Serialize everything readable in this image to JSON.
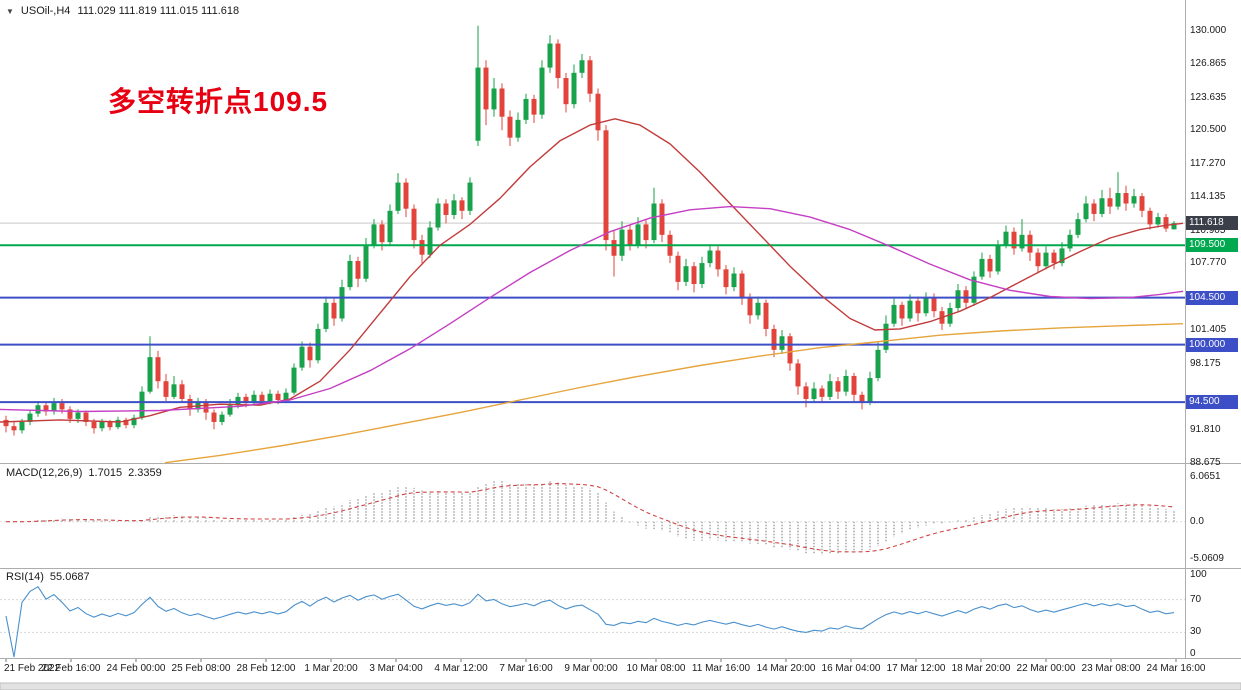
{
  "title": {
    "symbol_period": "USOil-,H4",
    "ohlc": "111.029 111.819 111.015 111.618"
  },
  "icons": {
    "triangle_down": "▼"
  },
  "annotation": {
    "text": "多空转折点109.5",
    "color": "#E60012"
  },
  "price_axis": {
    "labels": [
      "130.000",
      "126.865",
      "123.635",
      "120.500",
      "117.270",
      "114.135",
      "110.905",
      "107.770",
      "101.405",
      "98.175",
      "91.810",
      "88.675"
    ],
    "current_price_tag": "111.618"
  },
  "macd_panel": {
    "name": "MACD(12,26,9)",
    "main_value": "1.7015",
    "signal_value": "2.3359",
    "axis_labels": [
      "6.0651",
      "0.0",
      "-5.0609"
    ]
  },
  "rsi_panel": {
    "name": "RSI(14)",
    "value": "55.0687",
    "axis_labels": [
      "100",
      "70",
      "30",
      "0"
    ]
  },
  "time_axis": {
    "labels": [
      "21 Feb 2022",
      "22 Feb 16:00",
      "24 Feb 00:00",
      "25 Feb 08:00",
      "28 Feb 12:00",
      "1 Mar 20:00",
      "3 Mar 04:00",
      "4 Mar 12:00",
      "7 Mar 16:00",
      "9 Mar 00:00",
      "10 Mar 08:00",
      "11 Mar 16:00",
      "14 Mar 20:00",
      "16 Mar 04:00",
      "17 Mar 12:00",
      "18 Mar 20:00",
      "22 Mar 00:00",
      "23 Mar 08:00",
      "24 Mar 16:00"
    ]
  },
  "chart_data": {
    "type": "candlestick",
    "symbol": "USOil",
    "timeframe": "H4",
    "price_range": [
      88.675,
      130.0
    ],
    "colors": {
      "up": "#17A24B",
      "down": "#E2443C",
      "ma_fast": "#C23B3B",
      "ma_mid": "#C43FC4",
      "ma_slow": "#E6A43C",
      "macd_hist": "#ABABAB",
      "macd_signal": "#D04545",
      "rsi_line": "#4A90CC",
      "hline_blue": "#3D4FC6",
      "hline_green": "#00A84F",
      "price_tag_bg": "#3A3F4A",
      "bid_line": "#C9C9C9"
    },
    "horizontal_lines": [
      {
        "value": 109.5,
        "label": "109.500",
        "color": "#00A84F"
      },
      {
        "value": 104.5,
        "label": "104.500",
        "color": "#3D4FC6"
      },
      {
        "value": 100.0,
        "label": "100.000",
        "color": "#3D4FC6"
      },
      {
        "value": 94.5,
        "label": "94.500",
        "color": "#3D4FC6"
      }
    ],
    "moving_averages": [
      {
        "name": "ma-fast-red",
        "color": "#C23B3B",
        "points": [
          [
            0,
            92.6
          ],
          [
            60,
            92.8
          ],
          [
            120,
            92.6
          ],
          [
            150,
            93.2
          ],
          [
            180,
            94.0
          ],
          [
            220,
            94.3
          ],
          [
            260,
            94.2
          ],
          [
            290,
            94.8
          ],
          [
            320,
            96.5
          ],
          [
            350,
            99.5
          ],
          [
            380,
            103.0
          ],
          [
            410,
            106.5
          ],
          [
            440,
            109.5
          ],
          [
            470,
            111.5
          ],
          [
            500,
            114.0
          ],
          [
            530,
            117.0
          ],
          [
            560,
            119.5
          ],
          [
            590,
            121.0
          ],
          [
            615,
            121.6
          ],
          [
            640,
            121.0
          ],
          [
            670,
            119.2
          ],
          [
            700,
            116.5
          ],
          [
            730,
            113.5
          ],
          [
            760,
            110.5
          ],
          [
            790,
            107.5
          ],
          [
            820,
            104.8
          ],
          [
            850,
            102.5
          ],
          [
            875,
            101.4
          ],
          [
            900,
            101.5
          ],
          [
            930,
            102.2
          ],
          [
            960,
            103.2
          ],
          [
            990,
            104.5
          ],
          [
            1020,
            106.0
          ],
          [
            1050,
            107.5
          ],
          [
            1080,
            108.9
          ],
          [
            1110,
            110.2
          ],
          [
            1140,
            111.0
          ],
          [
            1165,
            111.4
          ],
          [
            1183,
            111.6
          ]
        ]
      },
      {
        "name": "ma-mid-magenta",
        "color": "#C43FC4",
        "points": [
          [
            0,
            93.8
          ],
          [
            80,
            93.6
          ],
          [
            160,
            93.7
          ],
          [
            240,
            94.1
          ],
          [
            290,
            94.7
          ],
          [
            330,
            95.8
          ],
          [
            370,
            97.5
          ],
          [
            410,
            99.6
          ],
          [
            450,
            102.0
          ],
          [
            490,
            104.5
          ],
          [
            530,
            106.9
          ],
          [
            570,
            109.0
          ],
          [
            610,
            110.8
          ],
          [
            650,
            112.1
          ],
          [
            690,
            112.9
          ],
          [
            730,
            113.2
          ],
          [
            770,
            113.0
          ],
          [
            810,
            112.2
          ],
          [
            850,
            111.0
          ],
          [
            890,
            109.4
          ],
          [
            930,
            107.7
          ],
          [
            970,
            106.2
          ],
          [
            1010,
            105.2
          ],
          [
            1050,
            104.6
          ],
          [
            1090,
            104.4
          ],
          [
            1130,
            104.5
          ],
          [
            1160,
            104.8
          ],
          [
            1183,
            105.1
          ]
        ]
      },
      {
        "name": "ma-slow-orange",
        "color": "#E6A43C",
        "points": [
          [
            165,
            88.7
          ],
          [
            220,
            89.4
          ],
          [
            280,
            90.3
          ],
          [
            340,
            91.3
          ],
          [
            400,
            92.4
          ],
          [
            460,
            93.5
          ],
          [
            520,
            94.7
          ],
          [
            580,
            95.9
          ],
          [
            640,
            97.0
          ],
          [
            700,
            98.0
          ],
          [
            760,
            98.9
          ],
          [
            820,
            99.7
          ],
          [
            880,
            100.3
          ],
          [
            940,
            100.9
          ],
          [
            1000,
            101.3
          ],
          [
            1060,
            101.6
          ],
          [
            1120,
            101.8
          ],
          [
            1183,
            102.0
          ]
        ]
      }
    ],
    "indicators": {
      "macd": {
        "fast": 12,
        "slow": 26,
        "signal": 9,
        "main": 1.7015,
        "signal_value": 2.3359,
        "axis_range": [
          -5.0609,
          6.0651
        ]
      },
      "rsi": {
        "period": 14,
        "value": 55.0687,
        "axis_range": [
          0,
          100
        ],
        "levels": [
          30,
          70
        ]
      }
    },
    "candles": [
      [
        92.8,
        93.2,
        91.6,
        92.2
      ],
      [
        92.2,
        92.6,
        91.3,
        91.8
      ],
      [
        91.8,
        92.9,
        91.5,
        92.6
      ],
      [
        92.6,
        93.8,
        92.3,
        93.4
      ],
      [
        93.4,
        94.6,
        93.1,
        94.2
      ],
      [
        94.2,
        94.5,
        93.2,
        93.6
      ],
      [
        93.6,
        94.9,
        93.3,
        94.4
      ],
      [
        94.4,
        94.8,
        93.4,
        93.8
      ],
      [
        93.8,
        94.1,
        92.5,
        92.9
      ],
      [
        92.9,
        93.8,
        92.5,
        93.5
      ],
      [
        93.5,
        93.7,
        92.2,
        92.6
      ],
      [
        92.6,
        92.9,
        91.5,
        92.0
      ],
      [
        92.0,
        92.9,
        91.7,
        92.6
      ],
      [
        92.6,
        92.8,
        91.8,
        92.1
      ],
      [
        92.1,
        93.1,
        91.9,
        92.8
      ],
      [
        92.8,
        93.0,
        92.0,
        92.3
      ],
      [
        92.3,
        93.3,
        92.0,
        93.0
      ],
      [
        93.0,
        96.0,
        92.8,
        95.5
      ],
      [
        95.5,
        100.8,
        95.3,
        98.8
      ],
      [
        98.8,
        99.4,
        95.8,
        96.5
      ],
      [
        96.5,
        97.2,
        94.6,
        95.0
      ],
      [
        95.0,
        97.0,
        94.8,
        96.2
      ],
      [
        96.2,
        96.6,
        94.5,
        94.8
      ],
      [
        94.8,
        95.2,
        93.2,
        93.8
      ],
      [
        93.8,
        94.9,
        93.5,
        94.5
      ],
      [
        94.5,
        94.8,
        92.8,
        93.5
      ],
      [
        93.5,
        93.8,
        91.9,
        92.6
      ],
      [
        92.6,
        93.6,
        92.3,
        93.3
      ],
      [
        93.3,
        94.8,
        93.1,
        94.2
      ],
      [
        94.2,
        95.4,
        93.9,
        95.0
      ],
      [
        95.0,
        95.3,
        94.0,
        94.4
      ],
      [
        94.4,
        95.6,
        94.2,
        95.2
      ],
      [
        95.2,
        95.5,
        94.2,
        94.6
      ],
      [
        94.6,
        95.7,
        94.3,
        95.3
      ],
      [
        95.3,
        95.6,
        94.3,
        94.7
      ],
      [
        94.7,
        95.8,
        94.4,
        95.4
      ],
      [
        95.4,
        98.2,
        95.2,
        97.8
      ],
      [
        97.8,
        100.3,
        97.5,
        99.8
      ],
      [
        99.8,
        100.2,
        97.8,
        98.5
      ],
      [
        98.5,
        102.0,
        98.2,
        101.5
      ],
      [
        101.5,
        104.6,
        101.2,
        104.0
      ],
      [
        104.0,
        104.4,
        101.8,
        102.5
      ],
      [
        102.5,
        106.2,
        102.2,
        105.5
      ],
      [
        105.5,
        108.6,
        105.2,
        108.0
      ],
      [
        108.0,
        108.4,
        105.5,
        106.3
      ],
      [
        106.3,
        110.2,
        106.0,
        109.5
      ],
      [
        109.5,
        112.0,
        109.2,
        111.5
      ],
      [
        111.5,
        111.9,
        109.0,
        109.8
      ],
      [
        109.8,
        113.4,
        109.5,
        112.8
      ],
      [
        112.8,
        116.4,
        112.5,
        115.5
      ],
      [
        115.5,
        115.9,
        112.2,
        113.0
      ],
      [
        113.0,
        113.4,
        109.2,
        110.0
      ],
      [
        110.0,
        110.5,
        107.8,
        108.6
      ],
      [
        108.6,
        111.8,
        108.3,
        111.2
      ],
      [
        111.2,
        114.0,
        110.9,
        113.5
      ],
      [
        113.5,
        113.9,
        111.6,
        112.4
      ],
      [
        112.4,
        114.4,
        112.0,
        113.8
      ],
      [
        113.8,
        114.1,
        112.0,
        112.8
      ],
      [
        112.8,
        116.0,
        112.4,
        115.5
      ],
      [
        119.5,
        130.5,
        119.0,
        126.5
      ],
      [
        126.5,
        127.2,
        121.0,
        122.5
      ],
      [
        122.5,
        125.5,
        121.8,
        124.5
      ],
      [
        124.5,
        125.0,
        120.5,
        121.8
      ],
      [
        121.8,
        122.4,
        119.0,
        119.8
      ],
      [
        119.8,
        122.2,
        119.4,
        121.5
      ],
      [
        121.5,
        124.0,
        121.1,
        123.5
      ],
      [
        123.5,
        123.9,
        121.2,
        122.0
      ],
      [
        122.0,
        127.2,
        121.6,
        126.5
      ],
      [
        126.5,
        129.6,
        126.0,
        128.8
      ],
      [
        128.8,
        129.2,
        124.5,
        125.5
      ],
      [
        125.5,
        126.0,
        122.2,
        123.0
      ],
      [
        123.0,
        126.8,
        122.6,
        126.0
      ],
      [
        126.0,
        127.8,
        125.5,
        127.2
      ],
      [
        127.2,
        127.6,
        123.2,
        124.0
      ],
      [
        124.0,
        124.5,
        119.5,
        120.5
      ],
      [
        120.5,
        121.0,
        109.0,
        110.0
      ],
      [
        110.0,
        111.0,
        106.5,
        108.5
      ],
      [
        108.5,
        111.8,
        108.0,
        111.0
      ],
      [
        111.0,
        111.4,
        109.0,
        109.5
      ],
      [
        109.5,
        112.2,
        109.2,
        111.5
      ],
      [
        111.5,
        111.9,
        109.2,
        110.0
      ],
      [
        110.0,
        115.0,
        109.7,
        113.5
      ],
      [
        113.5,
        113.9,
        109.8,
        110.5
      ],
      [
        110.5,
        110.9,
        107.8,
        108.5
      ],
      [
        108.5,
        108.9,
        105.2,
        106.0
      ],
      [
        106.0,
        108.2,
        105.6,
        107.5
      ],
      [
        107.5,
        107.9,
        105.0,
        105.8
      ],
      [
        105.8,
        108.4,
        105.4,
        107.8
      ],
      [
        107.8,
        109.6,
        107.4,
        109.0
      ],
      [
        109.0,
        109.4,
        106.5,
        107.2
      ],
      [
        107.2,
        107.6,
        104.8,
        105.5
      ],
      [
        105.5,
        107.4,
        105.1,
        106.8
      ],
      [
        106.8,
        107.1,
        103.8,
        104.5
      ],
      [
        104.5,
        104.9,
        102.0,
        102.8
      ],
      [
        102.8,
        104.6,
        102.4,
        104.0
      ],
      [
        104.0,
        104.3,
        100.8,
        101.5
      ],
      [
        101.5,
        101.9,
        98.8,
        99.5
      ],
      [
        99.5,
        101.4,
        99.1,
        100.8
      ],
      [
        100.8,
        101.1,
        97.5,
        98.2
      ],
      [
        98.2,
        98.6,
        95.2,
        96.0
      ],
      [
        96.0,
        96.4,
        94.0,
        94.8
      ],
      [
        94.8,
        96.4,
        94.4,
        95.8
      ],
      [
        95.8,
        96.1,
        94.4,
        95.0
      ],
      [
        95.0,
        97.2,
        94.7,
        96.5
      ],
      [
        96.5,
        96.9,
        94.8,
        95.5
      ],
      [
        95.5,
        97.6,
        95.1,
        97.0
      ],
      [
        97.0,
        97.3,
        94.5,
        95.2
      ],
      [
        95.2,
        95.5,
        93.8,
        94.5
      ],
      [
        94.5,
        97.4,
        94.2,
        96.8
      ],
      [
        96.8,
        100.2,
        96.5,
        99.5
      ],
      [
        99.5,
        102.8,
        99.2,
        102.0
      ],
      [
        102.0,
        104.4,
        101.7,
        103.8
      ],
      [
        103.8,
        104.1,
        101.8,
        102.5
      ],
      [
        102.5,
        104.8,
        102.2,
        104.2
      ],
      [
        104.2,
        104.6,
        102.2,
        103.0
      ],
      [
        103.0,
        105.0,
        102.7,
        104.5
      ],
      [
        104.5,
        104.9,
        102.6,
        103.2
      ],
      [
        103.2,
        103.6,
        101.4,
        102.0
      ],
      [
        102.0,
        104.0,
        101.7,
        103.5
      ],
      [
        103.5,
        105.8,
        103.2,
        105.2
      ],
      [
        105.2,
        105.6,
        103.4,
        104.0
      ],
      [
        104.0,
        107.0,
        103.7,
        106.5
      ],
      [
        106.5,
        108.8,
        106.2,
        108.2
      ],
      [
        108.2,
        108.6,
        106.4,
        107.0
      ],
      [
        107.0,
        110.0,
        106.7,
        109.5
      ],
      [
        109.5,
        111.4,
        109.2,
        110.8
      ],
      [
        110.8,
        111.2,
        108.6,
        109.2
      ],
      [
        109.2,
        112.0,
        108.9,
        110.5
      ],
      [
        110.5,
        110.9,
        108.0,
        108.8
      ],
      [
        108.8,
        109.2,
        106.8,
        107.5
      ],
      [
        107.5,
        109.4,
        107.2,
        108.8
      ],
      [
        108.8,
        109.1,
        107.2,
        107.8
      ],
      [
        107.8,
        109.8,
        107.5,
        109.2
      ],
      [
        109.2,
        111.0,
        108.9,
        110.5
      ],
      [
        110.5,
        112.6,
        110.2,
        112.0
      ],
      [
        112.0,
        114.2,
        111.7,
        113.5
      ],
      [
        113.5,
        113.9,
        111.8,
        112.5
      ],
      [
        112.5,
        114.8,
        112.2,
        114.0
      ],
      [
        114.0,
        115.0,
        112.5,
        113.2
      ],
      [
        113.2,
        116.5,
        112.9,
        114.5
      ],
      [
        114.5,
        115.2,
        112.8,
        113.5
      ],
      [
        113.5,
        114.9,
        113.1,
        114.2
      ],
      [
        114.2,
        114.5,
        112.2,
        112.8
      ],
      [
        112.8,
        113.1,
        111.0,
        111.5
      ],
      [
        111.5,
        112.6,
        111.2,
        112.2
      ],
      [
        112.2,
        112.5,
        110.8,
        111.1
      ],
      [
        111.029,
        111.819,
        111.015,
        111.618
      ]
    ]
  }
}
